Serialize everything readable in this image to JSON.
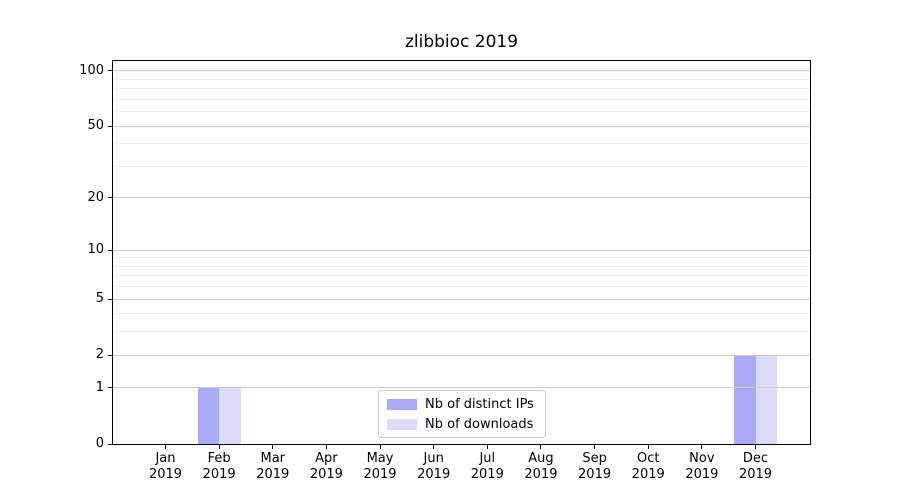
{
  "chart_data": {
    "type": "bar",
    "title": "zlibbioc 2019",
    "categories": [
      [
        "Jan",
        "2019"
      ],
      [
        "Feb",
        "2019"
      ],
      [
        "Mar",
        "2019"
      ],
      [
        "Apr",
        "2019"
      ],
      [
        "May",
        "2019"
      ],
      [
        "Jun",
        "2019"
      ],
      [
        "Jul",
        "2019"
      ],
      [
        "Aug",
        "2019"
      ],
      [
        "Sep",
        "2019"
      ],
      [
        "Oct",
        "2019"
      ],
      [
        "Nov",
        "2019"
      ],
      [
        "Dec",
        "2019"
      ]
    ],
    "series": [
      {
        "name": "Nb of distinct IPs",
        "color": "#a9a9f5",
        "values": [
          0,
          1,
          0,
          0,
          0,
          0,
          0,
          0,
          0,
          0,
          0,
          2
        ]
      },
      {
        "name": "Nb of downloads",
        "color": "#dcdcf8",
        "values": [
          0,
          1,
          0,
          0,
          0,
          0,
          0,
          0,
          0,
          0,
          0,
          2
        ]
      }
    ],
    "y_axis": {
      "scale": "log1p",
      "tick_values": [
        0,
        1,
        2,
        5,
        10,
        20,
        50,
        100
      ],
      "minor_gridline_values": [
        3,
        4,
        6,
        7,
        8,
        9,
        30,
        40,
        60,
        70,
        80,
        90
      ],
      "ymax": 113
    },
    "xlabel": "",
    "ylabel": "",
    "grid": true,
    "legend_position": "bottom-center-inside",
    "colors": {
      "major_grid": "#cccccc",
      "minor_grid": "#ececec",
      "spine": "#000000",
      "background": "#ffffff"
    }
  }
}
